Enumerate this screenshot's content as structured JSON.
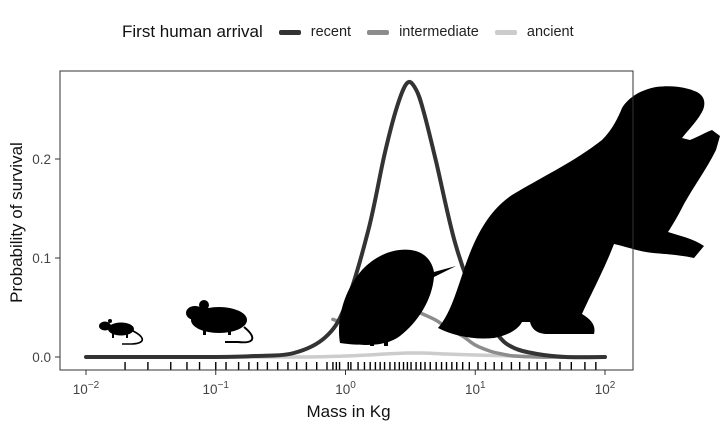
{
  "legend": {
    "title": "First human arrival",
    "items": [
      {
        "label": "recent",
        "color": "#333333"
      },
      {
        "label": "intermediate",
        "color": "#8c8c8c"
      },
      {
        "label": "ancient",
        "color": "#cccccc"
      }
    ]
  },
  "chart_data": {
    "type": "line",
    "title": "",
    "xlabel": "Mass in Kg",
    "ylabel": "Probability of survival",
    "xscale": "log10",
    "xlim": [
      0.01,
      100
    ],
    "ylim": [
      -0.01,
      0.29
    ],
    "xticks": [
      {
        "value": 0.01,
        "base": "10",
        "exp": "−2"
      },
      {
        "value": 0.1,
        "base": "10",
        "exp": "−1"
      },
      {
        "value": 1,
        "base": "10",
        "exp": "0"
      },
      {
        "value": 10,
        "base": "10",
        "exp": "1"
      },
      {
        "value": 100,
        "base": "10",
        "exp": "2"
      }
    ],
    "yticks": [
      {
        "value": 0.0,
        "label": "0.0"
      },
      {
        "value": 0.1,
        "label": "0.1"
      },
      {
        "value": 0.2,
        "label": "0.2"
      }
    ],
    "grid": false,
    "legend_position": "top",
    "series": [
      {
        "name": "recent",
        "color": "#333333",
        "x": [
          0.01,
          0.03,
          0.1,
          0.2,
          0.4,
          0.7,
          1.0,
          1.5,
          2.0,
          2.5,
          3.0,
          3.5,
          4.0,
          5.0,
          7.0,
          10,
          15,
          20,
          30,
          50,
          100
        ],
        "y": [
          0.0,
          0.0,
          0.0,
          0.001,
          0.004,
          0.02,
          0.052,
          0.128,
          0.205,
          0.253,
          0.277,
          0.27,
          0.248,
          0.197,
          0.115,
          0.059,
          0.022,
          0.009,
          0.003,
          0.0,
          0.0
        ]
      },
      {
        "name": "intermediate",
        "color": "#8c8c8c",
        "x": [
          0.8,
          1.0,
          1.3,
          1.6,
          2.0,
          2.5,
          3.0,
          3.5,
          4.0,
          5.0,
          6.0,
          8.0,
          10,
          13,
          16,
          20,
          30,
          50,
          100
        ],
        "y": [
          0.038,
          0.033,
          0.025,
          0.026,
          0.034,
          0.043,
          0.046,
          0.046,
          0.043,
          0.037,
          0.03,
          0.021,
          0.012,
          0.006,
          0.003,
          0.001,
          0.0,
          0.0,
          0.0
        ]
      },
      {
        "name": "ancient",
        "color": "#cccccc",
        "x": [
          0.01,
          0.1,
          0.5,
          1.0,
          1.5,
          2.0,
          3.0,
          4.0,
          6.0,
          10,
          20,
          50,
          100
        ],
        "y": [
          0.0,
          0.0,
          0.0,
          0.001,
          0.002,
          0.003,
          0.004,
          0.004,
          0.003,
          0.002,
          0.001,
          0.0,
          0.0
        ]
      }
    ],
    "rug": [
      0.02,
      0.03,
      0.045,
      0.06,
      0.075,
      0.1,
      0.12,
      0.15,
      0.18,
      0.21,
      0.25,
      0.3,
      0.36,
      0.42,
      0.5,
      0.6,
      0.72,
      0.8,
      0.85,
      0.9,
      1.05,
      1.1,
      1.25,
      1.4,
      1.55,
      1.7,
      1.85,
      2.0,
      2.2,
      2.4,
      2.6,
      2.8,
      3.0,
      3.2,
      3.5,
      3.8,
      4.1,
      4.5,
      5.0,
      5.5,
      6.0,
      6.6,
      7.2,
      8.0,
      9.0,
      10.5,
      12,
      14,
      16,
      19,
      22,
      26,
      30,
      35,
      45,
      55,
      70,
      85
    ],
    "silhouettes": [
      "rat-silhouette",
      "vole-silhouette",
      "kiwi-silhouette",
      "ground-sloth-silhouette"
    ]
  }
}
